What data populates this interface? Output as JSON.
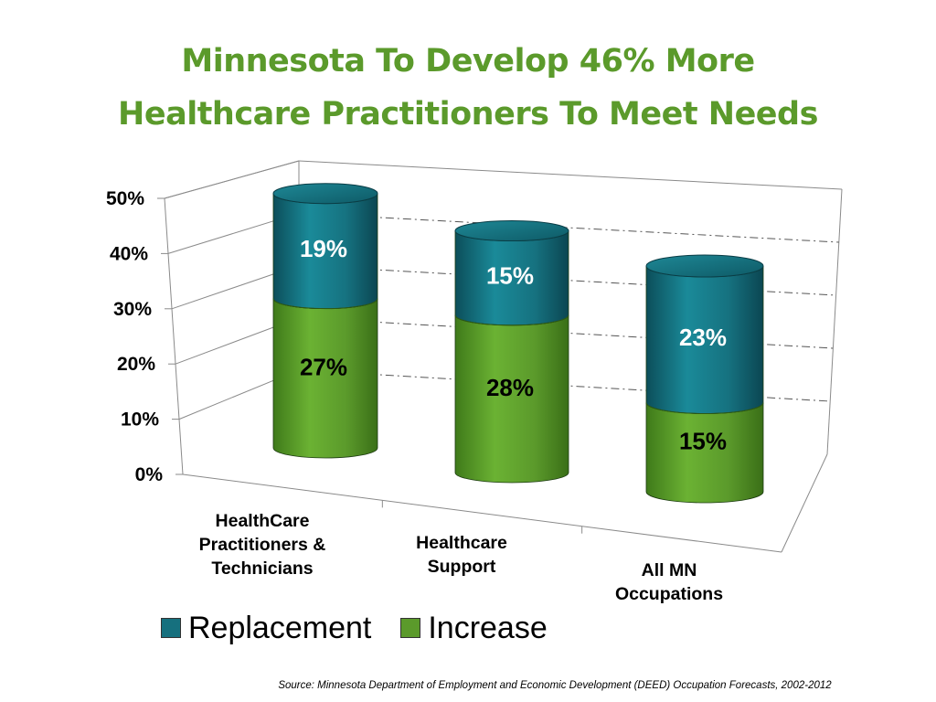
{
  "title": {
    "line1": "Minnesota To Develop 46% More",
    "line2": "Healthcare Practitioners To Meet Needs"
  },
  "source": "Source: Minnesota Department of Employment and Economic Development (DEED) Occupation Forecasts, 2002-2012",
  "colors": {
    "replacement": "#16707e",
    "increase": "#5b9a2b",
    "title": "#5b9a2b"
  },
  "legend": [
    {
      "label": "Replacement",
      "color": "#16707e"
    },
    {
      "label": "Increase",
      "color": "#5b9a2b"
    }
  ],
  "chart_data": {
    "type": "bar",
    "stacked": true,
    "style": "3d-cylinder",
    "categories": [
      [
        "HealthCare",
        "Practitioners &",
        "Technicians"
      ],
      [
        "Healthcare",
        "Support"
      ],
      [
        "All MN",
        "Occupations"
      ]
    ],
    "series": [
      {
        "name": "Increase",
        "values": [
          27,
          28,
          15
        ],
        "labels": [
          "27%",
          "28%",
          "15%"
        ]
      },
      {
        "name": "Replacement",
        "values": [
          19,
          15,
          23
        ],
        "labels": [
          "19%",
          "15%",
          "23%"
        ]
      }
    ],
    "yticks": [
      "0%",
      "10%",
      "20%",
      "30%",
      "40%",
      "50%"
    ],
    "ylim": [
      0,
      50
    ],
    "grid": true,
    "legend_position": "bottom"
  }
}
